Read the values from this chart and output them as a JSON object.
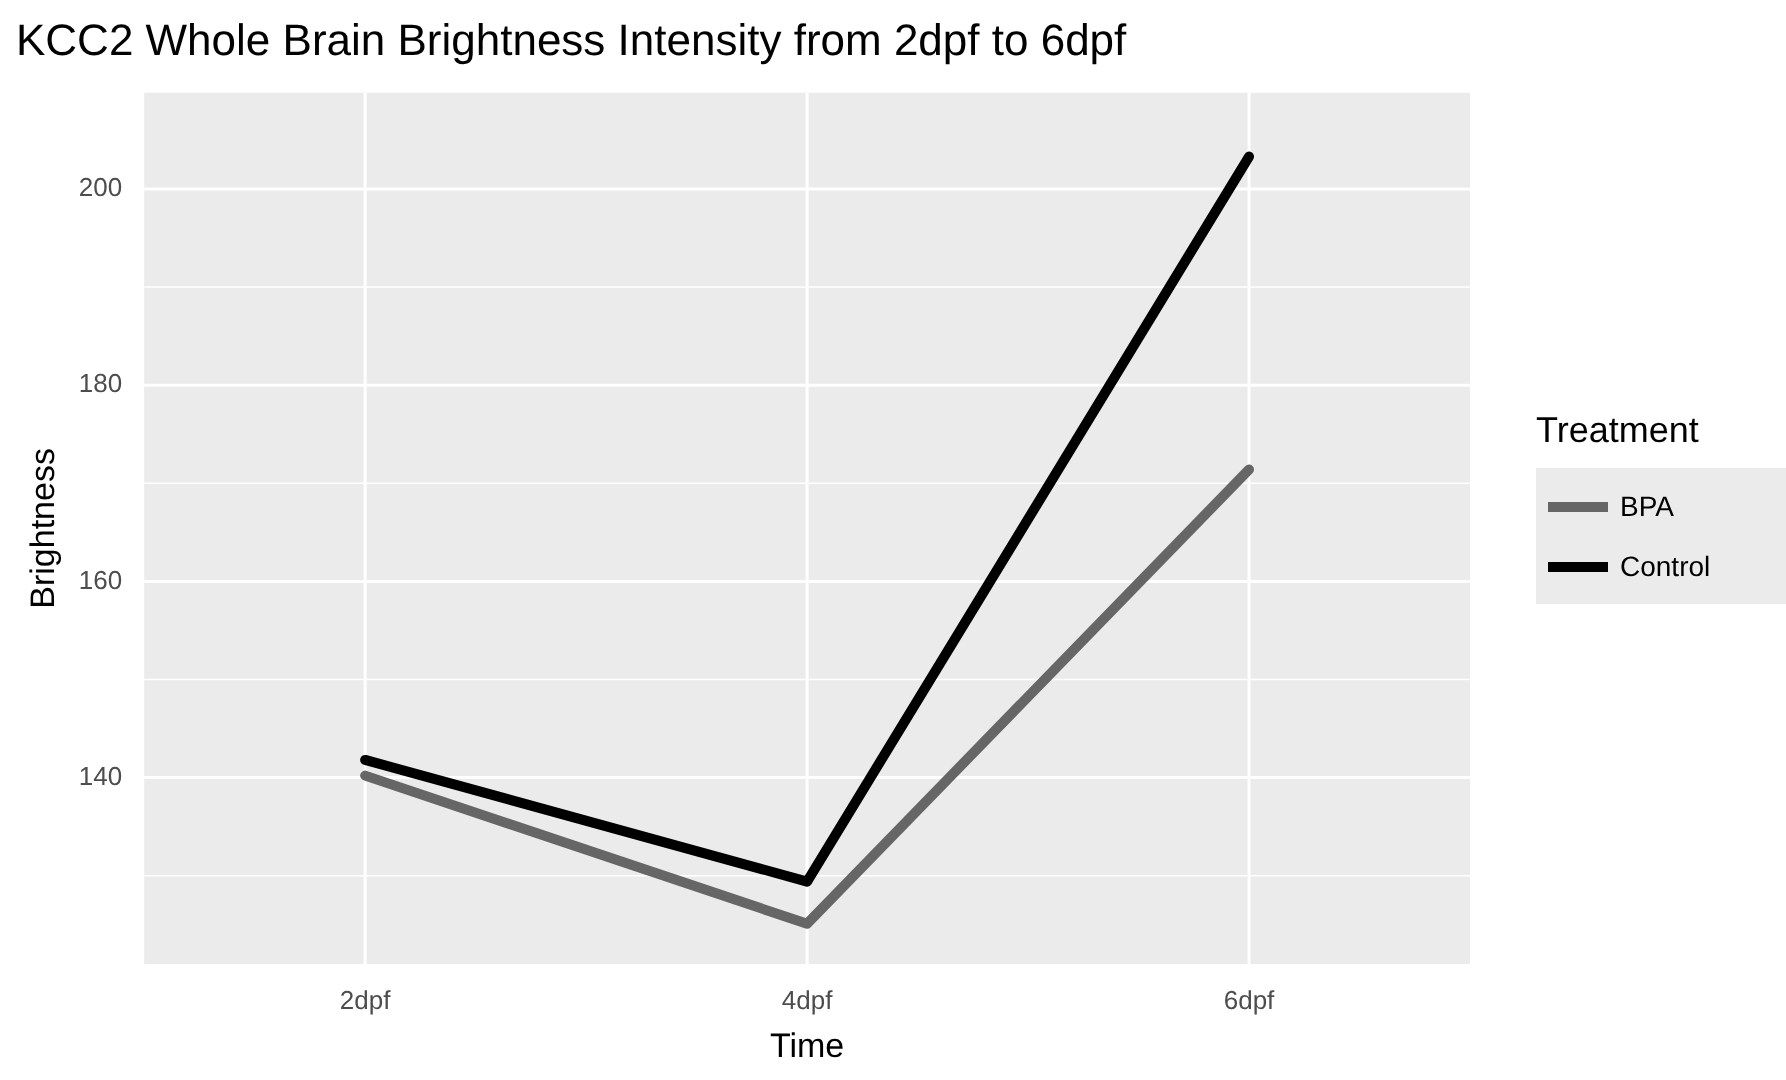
{
  "chart_data": {
    "type": "line",
    "title": "KCC2 Whole Brain Brightness Intensity from 2dpf to 6dpf",
    "xlabel": "Time",
    "ylabel": "Brightness",
    "legend_title": "Treatment",
    "categories": [
      "2dpf",
      "4dpf",
      "6dpf"
    ],
    "series": [
      {
        "name": "BPA",
        "color": "#666666",
        "values": [
          140.2,
          125.1,
          171.4
        ]
      },
      {
        "name": "Control",
        "color": "#000000",
        "values": [
          141.8,
          129.4,
          203.3
        ]
      }
    ],
    "ylim": [
      121,
      209.8
    ],
    "yticks": [
      140,
      160,
      180,
      200
    ],
    "grid": true,
    "legend": "right",
    "marker": "none",
    "line_style": "solid"
  }
}
